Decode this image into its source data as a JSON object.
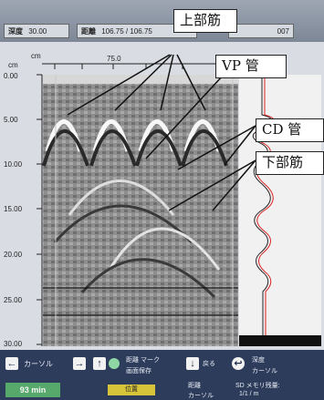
{
  "top_bar": {
    "depth_label": "深度",
    "depth_value": "30.00",
    "distance_label": "距離",
    "distance_value": "106.75 / 106.75",
    "extra_value": "007"
  },
  "scan": {
    "unit_left": "cm",
    "unit_top": "cm",
    "depth_ticks": [
      "0.00",
      "5.00",
      "10.00",
      "15.00",
      "20.00",
      "25.00",
      "30.00"
    ],
    "distance_tick": "75.0"
  },
  "annotations": {
    "top_rebar": "上部筋",
    "vp_pipe": "VP 管",
    "cd_pipe": "CD 管",
    "bottom_rebar": "下部筋"
  },
  "bottom_bar": {
    "cursor_label": "カーソル",
    "mark_label": "距離 マーク",
    "save_label": "画面保存",
    "depth_cursor_label": "深度",
    "depth_cursor_sub": "カーソル",
    "back_label": "戻る",
    "time": "93 min",
    "position_label": "位置",
    "dist_cursor": "距離",
    "dist_cursor_sub": "カーソル",
    "scale_line1": "SD メモリ残量:",
    "scale_line2": "1/1 / m"
  }
}
